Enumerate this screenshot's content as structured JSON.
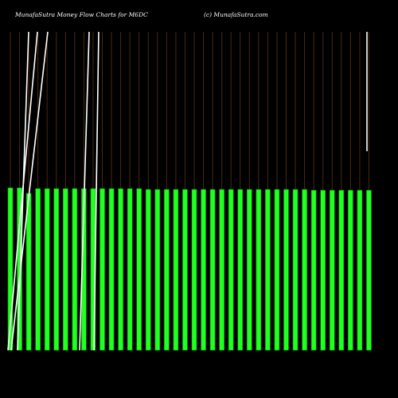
{
  "header": {
    "title": "MunafaSutra  Money Flow  Charts for M6DC",
    "watermark": "(c) MunafaSutra.com"
  },
  "colors": {
    "background": "#000000",
    "bar": "#22ff22",
    "bar_edge": "#009900",
    "grid_line": "#8a4a14",
    "price_line": "#ffffff"
  },
  "chart_data": {
    "type": "bar",
    "bar_count": 40,
    "values": [
      206,
      206,
      199,
      205,
      205,
      205,
      205,
      205,
      205,
      205,
      205,
      205,
      205,
      205,
      205,
      204,
      204,
      204,
      204,
      204,
      204,
      204,
      204,
      204,
      204,
      204,
      204,
      204,
      204,
      204,
      204,
      204,
      204,
      203,
      203,
      203,
      203,
      203,
      203,
      203
    ],
    "ylim": [
      0,
      206
    ],
    "overlay_lines": "white price line"
  }
}
